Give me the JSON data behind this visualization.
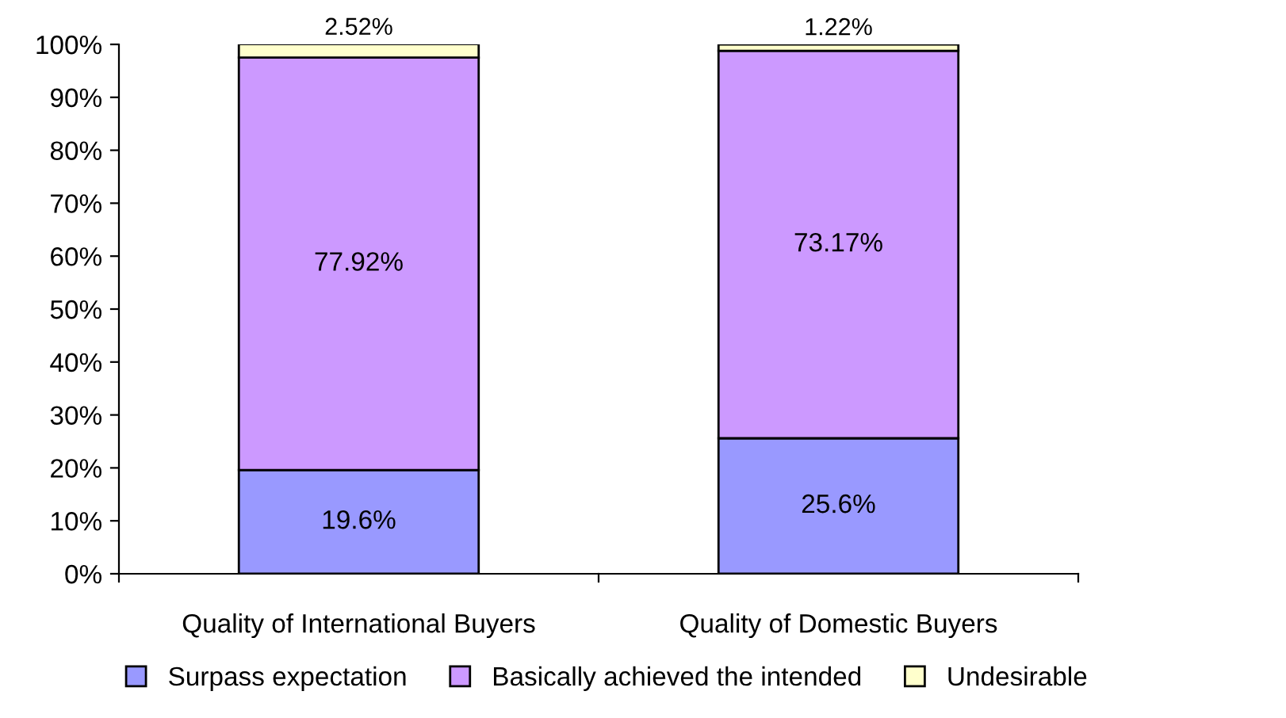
{
  "chart_data": {
    "type": "bar",
    "stacked": true,
    "categories": [
      "Quality of International Buyers",
      "Quality of Domestic Buyers"
    ],
    "series": [
      {
        "name": "Surpass expectation",
        "color": "#9999ff",
        "values": [
          19.6,
          25.6
        ],
        "value_labels": [
          "19.6%",
          "25.6%"
        ]
      },
      {
        "name": "Basically achieved the intended",
        "color": "#cc99ff",
        "values": [
          77.92,
          73.17
        ],
        "value_labels": [
          "77.92%",
          "73.17%"
        ]
      },
      {
        "name": "Undesirable",
        "color": "#ffffcc",
        "values": [
          2.52,
          1.22
        ],
        "value_labels": [
          "2.52%",
          "1.22%"
        ]
      }
    ],
    "ylim": [
      0,
      100
    ],
    "yticks": [
      {
        "value": 0,
        "label": "0%"
      },
      {
        "value": 10,
        "label": "10%"
      },
      {
        "value": 20,
        "label": "20%"
      },
      {
        "value": 30,
        "label": "30%"
      },
      {
        "value": 40,
        "label": "40%"
      },
      {
        "value": 50,
        "label": "50%"
      },
      {
        "value": 60,
        "label": "60%"
      },
      {
        "value": 70,
        "label": "70%"
      },
      {
        "value": 80,
        "label": "80%"
      },
      {
        "value": 90,
        "label": "90%"
      },
      {
        "value": 100,
        "label": "100%"
      }
    ],
    "grid": false,
    "legend": "bottom",
    "marker": "square"
  }
}
